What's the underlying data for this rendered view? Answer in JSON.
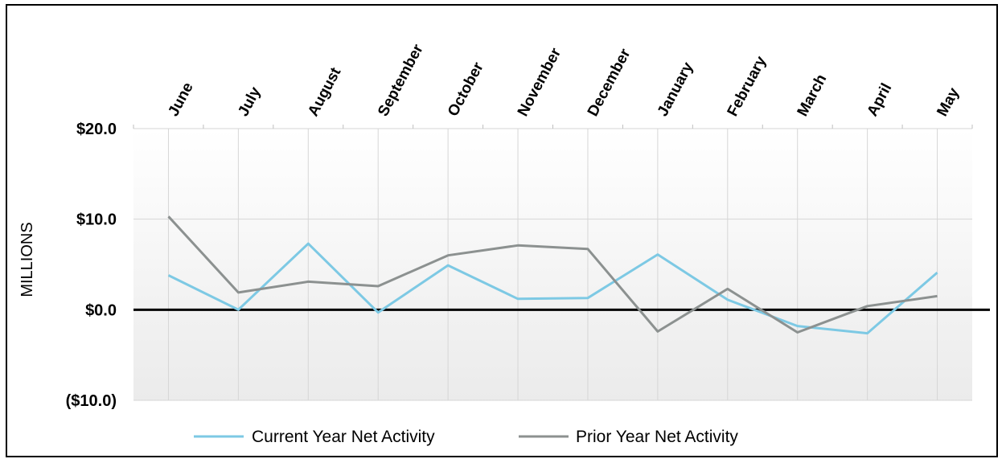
{
  "chart_data": {
    "type": "line",
    "categories": [
      "June",
      "July",
      "August",
      "September",
      "October",
      "November",
      "December",
      "January",
      "February",
      "March",
      "April",
      "May"
    ],
    "series": [
      {
        "name": "Current Year Net Activity",
        "color": "#7dc9e4",
        "values": [
          3.8,
          0.0,
          7.3,
          -0.3,
          4.9,
          1.2,
          1.3,
          6.1,
          1.1,
          -1.8,
          -2.6,
          4.1
        ]
      },
      {
        "name": "Prior Year Net Activity",
        "color": "#8c9190",
        "values": [
          10.3,
          1.9,
          3.1,
          2.6,
          6.0,
          7.1,
          6.7,
          -2.4,
          2.3,
          -2.5,
          0.4,
          1.5
        ]
      }
    ],
    "ylabel": "MILLIONS",
    "ylim": [
      -10,
      20
    ],
    "yticks": [
      {
        "value": 20,
        "label": "$20.0"
      },
      {
        "value": 10,
        "label": "$10.0"
      },
      {
        "value": 0,
        "label": "$0.0"
      },
      {
        "value": -10,
        "label": "($10.0)"
      }
    ],
    "grid": true,
    "legend_position": "bottom"
  }
}
